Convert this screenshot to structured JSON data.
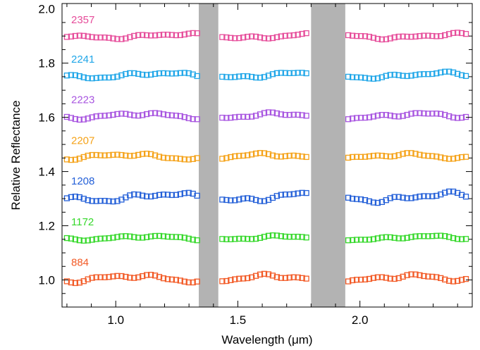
{
  "chart_data": {
    "type": "scatter",
    "title": "",
    "xlabel": "Wavelength (μm)",
    "ylabel": "Relative Reflectance",
    "xlim": [
      0.78,
      2.46
    ],
    "ylim": [
      0.9,
      2.02
    ],
    "xticks": [
      1.0,
      1.5,
      2.0
    ],
    "yticks": [
      1.0,
      1.2,
      1.4,
      1.6,
      1.8,
      2.0
    ],
    "xtick_labels": [
      "1.0",
      "1.5",
      "2.0"
    ],
    "ytick_labels": [
      "1.0",
      "1.2",
      "1.4",
      "1.6",
      "1.8",
      "2.0"
    ],
    "gaps": [
      [
        1.34,
        1.42
      ],
      [
        1.8,
        1.94
      ]
    ],
    "gap_color": "#b3b3b3",
    "marker": "open-square",
    "series": [
      {
        "name": "2357",
        "color": "#e64c9a",
        "offset": 1.9,
        "amp": 0.007,
        "phase": 0.3
      },
      {
        "name": "2241",
        "color": "#1fa6e8",
        "offset": 1.755,
        "amp": 0.008,
        "phase": 1.1
      },
      {
        "name": "2223",
        "color": "#a855e0",
        "offset": 1.605,
        "amp": 0.008,
        "phase": 2.0
      },
      {
        "name": "2207",
        "color": "#f5a218",
        "offset": 1.455,
        "amp": 0.008,
        "phase": 2.7
      },
      {
        "name": "1208",
        "color": "#2460d8",
        "offset": 1.305,
        "amp": 0.012,
        "phase": 0.8
      },
      {
        "name": "1172",
        "color": "#35d82a",
        "offset": 1.155,
        "amp": 0.006,
        "phase": 1.7
      },
      {
        "name": "884",
        "color": "#f25a26",
        "offset": 1.005,
        "amp": 0.01,
        "phase": 2.4
      }
    ]
  }
}
